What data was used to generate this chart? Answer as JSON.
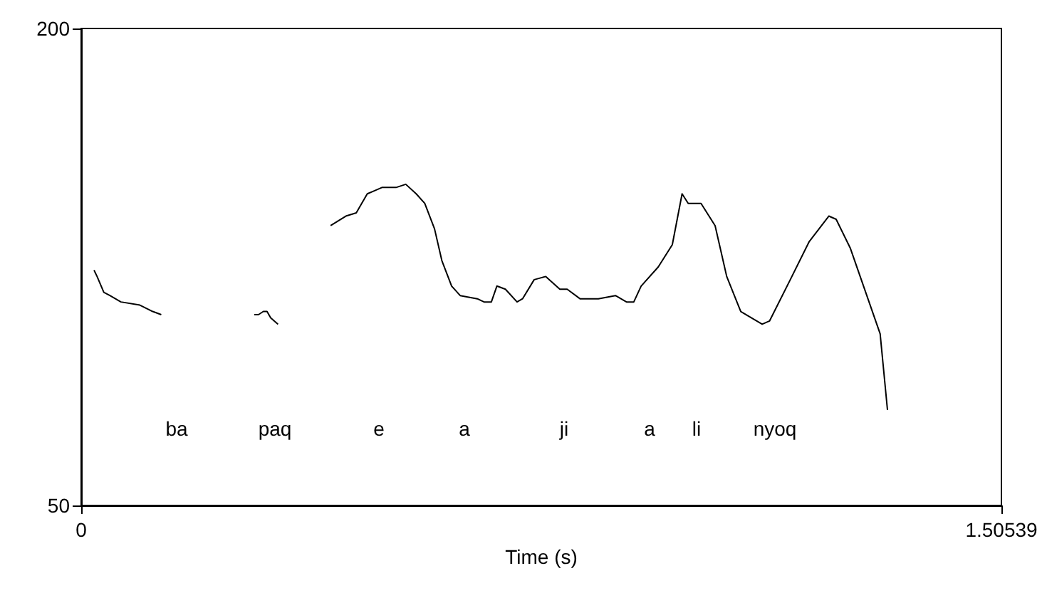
{
  "chart_data": {
    "type": "line",
    "xlabel": "Time (s)",
    "xlim": [
      0,
      1.50539
    ],
    "ylim": [
      50,
      200
    ],
    "xticks": [
      0,
      1.50539
    ],
    "yticks": [
      50,
      200
    ],
    "grid": false,
    "marker": "none",
    "line_style": "solid",
    "series": [
      {
        "color": "#000000",
        "x": [
          0.021,
          0.026,
          0.037,
          0.047,
          0.065,
          0.096,
          0.117,
          0.131,
          0.2,
          0.283,
          0.29,
          0.298,
          0.304,
          0.31,
          0.316,
          0.322,
          0.36,
          0.408,
          0.433,
          0.45,
          0.468,
          0.48,
          0.492,
          0.515,
          0.531,
          0.548,
          0.562,
          0.578,
          0.59,
          0.606,
          0.62,
          0.648,
          0.659,
          0.671,
          0.68,
          0.694,
          0.713,
          0.722,
          0.741,
          0.76,
          0.783,
          0.795,
          0.816,
          0.846,
          0.874,
          0.892,
          0.904,
          0.916,
          0.944,
          0.967,
          0.983,
          0.993,
          1.014,
          1.037,
          1.056,
          1.079,
          1.114,
          1.126,
          1.16,
          1.191,
          1.223,
          1.235,
          1.258,
          1.307,
          1.319
        ],
        "values": [
          124,
          122,
          117,
          116,
          114,
          113,
          111,
          110,
          null,
          110,
          110,
          111,
          111,
          109,
          108,
          107,
          null,
          138,
          141,
          142,
          148,
          149,
          150,
          150,
          151,
          148,
          145,
          137,
          127,
          119,
          116,
          115,
          114,
          114,
          119,
          118,
          114,
          115,
          121,
          122,
          118,
          118,
          115,
          115,
          116,
          114,
          114,
          119,
          125,
          132,
          148,
          145,
          145,
          138,
          122,
          111,
          107,
          108,
          121,
          133,
          141,
          140,
          131,
          104,
          80
        ]
      }
    ],
    "annotations": [
      "ba",
      "paq",
      "e",
      "a",
      "ji",
      "a",
      "li",
      "nyoq"
    ]
  }
}
